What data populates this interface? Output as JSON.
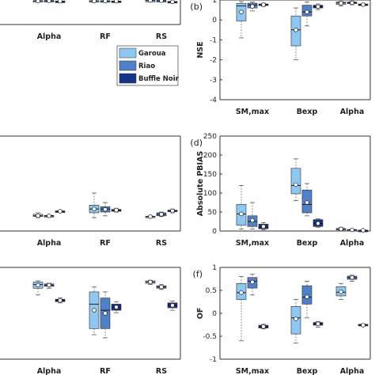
{
  "colors": {
    "Garoua": "#8ec8f2",
    "Riao": "#4f80c8",
    "Buffle Noir": "#17328a"
  },
  "legend": {
    "placement": "inside panel (a), right",
    "entries": [
      "Garoua",
      "Riao",
      "Buffle Noir"
    ]
  },
  "chart_data": [
    {
      "type": "box",
      "panel_label": "",
      "categories": [
        "Alpha",
        "RF",
        "RS"
      ],
      "ylabel": "",
      "ylim": [
        -4,
        1
      ],
      "yticks": [],
      "boxes": [
        {
          "category": "Alpha",
          "series": "Garoua",
          "min": 0.7,
          "q1": 0.76,
          "median": 0.82,
          "q3": 0.88,
          "max": 0.92,
          "mean": 0.8
        },
        {
          "category": "Alpha",
          "series": "Riao",
          "min": 0.76,
          "q1": 0.8,
          "median": 0.86,
          "q3": 0.9,
          "max": 0.93,
          "mean": 0.85
        },
        {
          "category": "Alpha",
          "series": "Buffle Noir",
          "min": 0.73,
          "q1": 0.75,
          "median": 0.76,
          "q3": 0.77,
          "max": 0.78,
          "mean": 0.76
        },
        {
          "category": "RF",
          "series": "Garoua",
          "min": 0.52,
          "q1": 0.7,
          "median": 0.8,
          "q3": 0.86,
          "max": 0.9,
          "mean": 0.78
        },
        {
          "category": "RF",
          "series": "Riao",
          "min": 0.55,
          "q1": 0.72,
          "median": 0.8,
          "q3": 0.85,
          "max": 0.88,
          "mean": 0.78
        },
        {
          "category": "RF",
          "series": "Buffle Noir",
          "min": 0.72,
          "q1": 0.76,
          "median": 0.77,
          "q3": 0.79,
          "max": 0.8,
          "mean": 0.77
        },
        {
          "category": "RS",
          "series": "Garoua",
          "min": 0.86,
          "q1": 0.88,
          "median": 0.9,
          "q3": 0.92,
          "max": 0.93,
          "mean": 0.9
        },
        {
          "category": "RS",
          "series": "Riao",
          "min": 0.82,
          "q1": 0.86,
          "median": 0.88,
          "q3": 0.9,
          "max": 0.92,
          "mean": 0.87
        },
        {
          "category": "RS",
          "series": "Buffle Noir",
          "min": 0.5,
          "q1": 0.58,
          "median": 0.63,
          "q3": 0.7,
          "max": 0.74,
          "mean": 0.62
        }
      ]
    },
    {
      "type": "box",
      "panel_label": "(b)",
      "categories": [
        "SM,max",
        "Bexp",
        "Alpha"
      ],
      "ylabel": "NSE",
      "ylim": [
        -4,
        1
      ],
      "yticks": [
        1,
        0,
        -1,
        -2,
        -3,
        -4
      ],
      "boxes": [
        {
          "category": "SM,max",
          "series": "Garoua",
          "min": -0.9,
          "q1": -0.05,
          "median": 0.7,
          "q3": 0.83,
          "max": 0.92,
          "mean": 0.4
        },
        {
          "category": "SM,max",
          "series": "Riao",
          "min": 0.45,
          "q1": 0.6,
          "median": 0.75,
          "q3": 0.84,
          "max": 0.9,
          "mean": 0.68
        },
        {
          "category": "SM,max",
          "series": "Buffle Noir",
          "min": 0.68,
          "q1": 0.72,
          "median": 0.76,
          "q3": 0.8,
          "max": 0.84,
          "mean": 0.76
        },
        {
          "category": "Bexp",
          "series": "Garoua",
          "min": -2.0,
          "q1": -1.3,
          "median": -0.5,
          "q3": 0.2,
          "max": 0.6,
          "mean": -0.5
        },
        {
          "category": "Bexp",
          "series": "Riao",
          "min": -0.3,
          "q1": 0.2,
          "median": 0.4,
          "q3": 0.74,
          "max": 0.9,
          "mean": 0.4
        },
        {
          "category": "Bexp",
          "series": "Buffle Noir",
          "min": 0.52,
          "q1": 0.6,
          "median": 0.67,
          "q3": 0.74,
          "max": 0.8,
          "mean": 0.67
        },
        {
          "category": "Alpha",
          "series": "Garoua",
          "min": 0.7,
          "q1": 0.78,
          "median": 0.85,
          "q3": 0.9,
          "max": 0.93,
          "mean": 0.84
        },
        {
          "category": "Alpha",
          "series": "Riao",
          "min": 0.76,
          "q1": 0.82,
          "median": 0.86,
          "q3": 0.9,
          "max": 0.93,
          "mean": 0.86
        },
        {
          "category": "Alpha",
          "series": "Buffle Noir",
          "min": 0.72,
          "q1": 0.75,
          "median": 0.77,
          "q3": 0.8,
          "max": 0.82,
          "mean": 0.77
        }
      ]
    },
    {
      "type": "box",
      "panel_label": "",
      "categories": [
        "Alpha",
        "RF",
        "RS"
      ],
      "ylabel": "",
      "ylim": [
        0,
        250
      ],
      "yticks": [],
      "boxes": [
        {
          "category": "Alpha",
          "series": "Garoua",
          "min": 35,
          "q1": 38,
          "median": 40,
          "q3": 44,
          "max": 48,
          "mean": 40
        },
        {
          "category": "Alpha",
          "series": "Riao",
          "min": 38,
          "q1": 39,
          "median": 40,
          "q3": 41,
          "max": 42,
          "mean": 40
        },
        {
          "category": "Alpha",
          "series": "Buffle Noir",
          "min": 50,
          "q1": 51,
          "median": 52,
          "q3": 53,
          "max": 54,
          "mean": 52
        },
        {
          "category": "RF",
          "series": "Garoua",
          "min": 35,
          "q1": 48,
          "median": 58,
          "q3": 68,
          "max": 100,
          "mean": 58
        },
        {
          "category": "RF",
          "series": "Riao",
          "min": 40,
          "q1": 50,
          "median": 58,
          "q3": 64,
          "max": 75,
          "mean": 57
        },
        {
          "category": "RF",
          "series": "Buffle Noir",
          "min": 50,
          "q1": 52,
          "median": 54,
          "q3": 57,
          "max": 60,
          "mean": 55
        },
        {
          "category": "RS",
          "series": "Garoua",
          "min": 36,
          "q1": 37,
          "median": 38,
          "q3": 39,
          "max": 40,
          "mean": 38
        },
        {
          "category": "RS",
          "series": "Riao",
          "min": 38,
          "q1": 40,
          "median": 44,
          "q3": 48,
          "max": 50,
          "mean": 44
        },
        {
          "category": "RS",
          "series": "Buffle Noir",
          "min": 48,
          "q1": 51,
          "median": 53,
          "q3": 55,
          "max": 58,
          "mean": 53
        }
      ]
    },
    {
      "type": "box",
      "panel_label": "(d)",
      "categories": [
        "SM,max",
        "Bexp",
        "Alpha"
      ],
      "ylabel": "Absolute PBIAS",
      "ylim": [
        0,
        250
      ],
      "yticks": [
        250,
        200,
        150,
        100,
        50,
        0
      ],
      "boxes": [
        {
          "category": "SM,max",
          "series": "Garoua",
          "min": 5,
          "q1": 15,
          "median": 45,
          "q3": 70,
          "max": 120,
          "mean": 45
        },
        {
          "category": "SM,max",
          "series": "Riao",
          "min": 5,
          "q1": 12,
          "median": 25,
          "q3": 40,
          "max": 75,
          "mean": 28
        },
        {
          "category": "SM,max",
          "series": "Buffle Noir",
          "min": 3,
          "q1": 6,
          "median": 10,
          "q3": 18,
          "max": 22,
          "mean": 12
        },
        {
          "category": "Bexp",
          "series": "Garoua",
          "min": 80,
          "q1": 98,
          "median": 120,
          "q3": 165,
          "max": 190,
          "mean": 122
        },
        {
          "category": "Bexp",
          "series": "Riao",
          "min": 40,
          "q1": 48,
          "median": 70,
          "q3": 108,
          "max": 125,
          "mean": 75
        },
        {
          "category": "Bexp",
          "series": "Buffle Noir",
          "min": 10,
          "q1": 12,
          "median": 20,
          "q3": 30,
          "max": 32,
          "mean": 20
        },
        {
          "category": "Alpha",
          "series": "Garoua",
          "min": 2,
          "q1": 3,
          "median": 4,
          "q3": 7,
          "max": 10,
          "mean": 5
        },
        {
          "category": "Alpha",
          "series": "Riao",
          "min": 1,
          "q1": 2,
          "median": 3,
          "q3": 4,
          "max": 5,
          "mean": 3
        },
        {
          "category": "Alpha",
          "series": "Buffle Noir",
          "min": 0,
          "q1": 1,
          "median": 2,
          "q3": 2,
          "max": 3,
          "mean": 2
        }
      ]
    },
    {
      "type": "box",
      "panel_label": "",
      "categories": [
        "Alpha",
        "RF",
        "RS"
      ],
      "ylabel": "",
      "ylim": [
        -0.5,
        1
      ],
      "yticks": [],
      "boxes": [
        {
          "category": "Alpha",
          "series": "Garoua",
          "min": 0.55,
          "q1": 0.66,
          "median": 0.72,
          "q3": 0.76,
          "max": 0.78,
          "mean": 0.71
        },
        {
          "category": "Alpha",
          "series": "Riao",
          "min": 0.66,
          "q1": 0.69,
          "median": 0.71,
          "q3": 0.73,
          "max": 0.74,
          "mean": 0.71
        },
        {
          "category": "Alpha",
          "series": "Buffle Noir",
          "min": 0.42,
          "q1": 0.44,
          "median": 0.46,
          "q3": 0.48,
          "max": 0.5,
          "mean": 0.46
        },
        {
          "category": "RF",
          "series": "Garoua",
          "min": -0.1,
          "q1": 0.0,
          "median": 0.4,
          "q3": 0.6,
          "max": 0.68,
          "mean": 0.3
        },
        {
          "category": "RF",
          "series": "Riao",
          "min": -0.15,
          "q1": 0.0,
          "median": 0.3,
          "q3": 0.5,
          "max": 0.6,
          "mean": 0.25
        },
        {
          "category": "RF",
          "series": "Buffle Noir",
          "min": 0.26,
          "q1": 0.3,
          "median": 0.35,
          "q3": 0.4,
          "max": 0.44,
          "mean": 0.35
        },
        {
          "category": "RS",
          "series": "Garoua",
          "min": 0.72,
          "q1": 0.74,
          "median": 0.76,
          "q3": 0.78,
          "max": 0.79,
          "mean": 0.76
        },
        {
          "category": "RS",
          "series": "Riao",
          "min": 0.64,
          "q1": 0.66,
          "median": 0.68,
          "q3": 0.7,
          "max": 0.72,
          "mean": 0.68
        },
        {
          "category": "RS",
          "series": "Buffle Noir",
          "min": 0.3,
          "q1": 0.34,
          "median": 0.38,
          "q3": 0.42,
          "max": 0.45,
          "mean": 0.38
        }
      ]
    },
    {
      "type": "box",
      "panel_label": "(f)",
      "categories": [
        "SM,max",
        "Bexp",
        "Alpha"
      ],
      "ylabel": "OF",
      "ylim": [
        -1,
        1
      ],
      "yticks": [
        1,
        0.5,
        0,
        -0.5,
        -1
      ],
      "boxes": [
        {
          "category": "SM,max",
          "series": "Garoua",
          "min": -0.6,
          "q1": 0.3,
          "median": 0.45,
          "q3": 0.65,
          "max": 0.8,
          "mean": 0.45
        },
        {
          "category": "SM,max",
          "series": "Riao",
          "min": 0.4,
          "q1": 0.55,
          "median": 0.7,
          "q3": 0.78,
          "max": 0.85,
          "mean": 0.68
        },
        {
          "category": "SM,max",
          "series": "Buffle Noir",
          "min": -0.34,
          "q1": -0.32,
          "median": -0.3,
          "q3": -0.26,
          "max": -0.24,
          "mean": -0.29
        },
        {
          "category": "Bexp",
          "series": "Garoua",
          "min": -0.65,
          "q1": -0.45,
          "median": -0.1,
          "q3": 0.15,
          "max": 0.3,
          "mean": -0.12
        },
        {
          "category": "Bexp",
          "series": "Riao",
          "min": -0.1,
          "q1": 0.2,
          "median": 0.35,
          "q3": 0.6,
          "max": 0.7,
          "mean": 0.36
        },
        {
          "category": "Bexp",
          "series": "Buffle Noir",
          "min": -0.3,
          "q1": -0.26,
          "median": -0.23,
          "q3": -0.2,
          "max": -0.18,
          "mean": -0.23
        },
        {
          "category": "Alpha",
          "series": "Garoua",
          "min": 0.3,
          "q1": 0.38,
          "median": 0.46,
          "q3": 0.58,
          "max": 0.65,
          "mean": 0.47
        },
        {
          "category": "Alpha",
          "series": "Riao",
          "min": 0.7,
          "q1": 0.74,
          "median": 0.78,
          "q3": 0.81,
          "max": 0.83,
          "mean": 0.78
        },
        {
          "category": "Alpha",
          "series": "Buffle Noir",
          "min": -0.28,
          "q1": -0.27,
          "median": -0.26,
          "q3": -0.24,
          "max": -0.23,
          "mean": -0.26
        }
      ]
    }
  ]
}
